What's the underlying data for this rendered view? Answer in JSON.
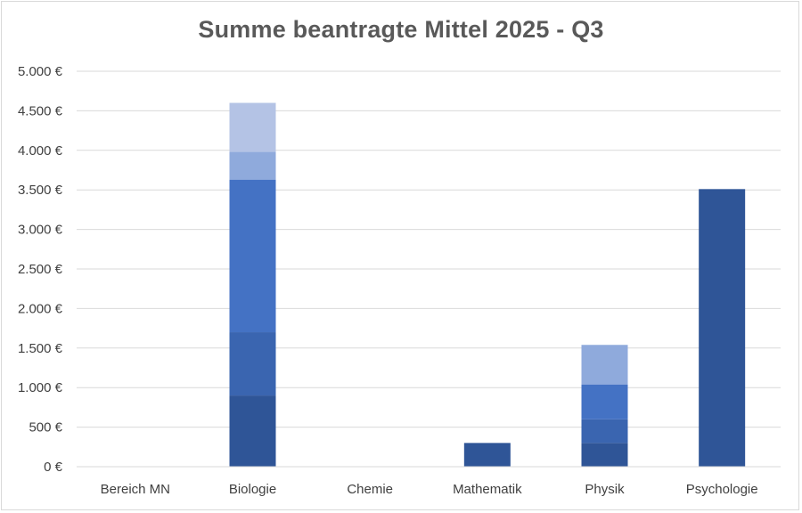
{
  "chart_data": {
    "type": "bar",
    "stacked": true,
    "title": "Summe beantragte Mittel 2025 - Q3",
    "xlabel": "",
    "ylabel": "",
    "ylim": [
      0,
      5000
    ],
    "y_ticks": [
      0,
      500,
      1000,
      1500,
      2000,
      2500,
      3000,
      3500,
      4000,
      4500,
      5000
    ],
    "y_tick_labels": [
      "0 €",
      "500 €",
      "1.000 €",
      "1.500 €",
      "2.000 €",
      "2.500 €",
      "3.000 €",
      "3.500 €",
      "4.000 €",
      "4.500 €",
      "5.000 €"
    ],
    "grid": true,
    "legend": "none",
    "categories": [
      "Bereich MN",
      "Biologie",
      "Chemie",
      "Mathematik",
      "Physik",
      "Psychologie"
    ],
    "series": [
      {
        "values": [
          0,
          900,
          0,
          300,
          300,
          3510
        ],
        "color": "#2f5597"
      },
      {
        "values": [
          0,
          800,
          0,
          0,
          300,
          0
        ],
        "color": "#3a65b0"
      },
      {
        "values": [
          0,
          1930,
          0,
          0,
          440,
          0
        ],
        "color": "#4472c4"
      },
      {
        "values": [
          0,
          350,
          0,
          0,
          500,
          0
        ],
        "color": "#8faadc"
      },
      {
        "values": [
          0,
          620,
          0,
          0,
          0,
          0
        ],
        "color": "#b4c3e5"
      }
    ]
  }
}
